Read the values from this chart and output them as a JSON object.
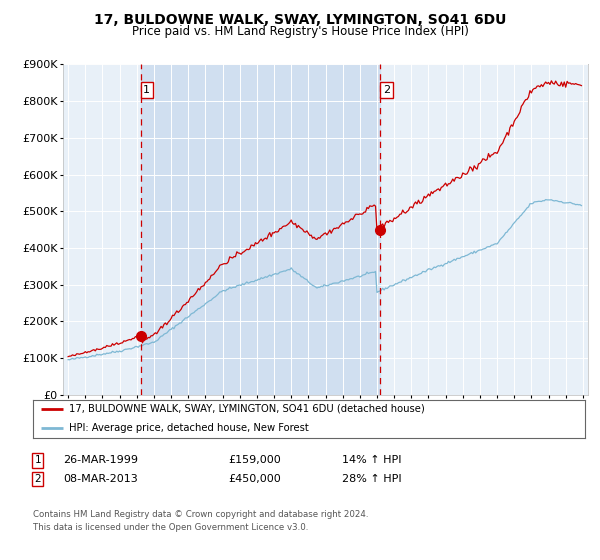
{
  "title": "17, BULDOWNE WALK, SWAY, LYMINGTON, SO41 6DU",
  "subtitle": "Price paid vs. HM Land Registry's House Price Index (HPI)",
  "red_color": "#cc0000",
  "blue_color": "#7eb8d4",
  "purchase1_date": "26-MAR-1999",
  "purchase1_price": 159000,
  "purchase1_hpi": "14%",
  "purchase2_date": "08-MAR-2013",
  "purchase2_price": 450000,
  "purchase2_hpi": "28%",
  "legend1": "17, BULDOWNE WALK, SWAY, LYMINGTON, SO41 6DU (detached house)",
  "legend2": "HPI: Average price, detached house, New Forest",
  "footnote": "Contains HM Land Registry data © Crown copyright and database right 2024.\nThis data is licensed under the Open Government Licence v3.0.",
  "ylim": [
    0,
    900000
  ],
  "yticks": [
    0,
    100000,
    200000,
    300000,
    400000,
    500000,
    600000,
    700000,
    800000,
    900000
  ],
  "ytick_labels": [
    "£0",
    "£100K",
    "£200K",
    "£300K",
    "£400K",
    "£500K",
    "£600K",
    "£700K",
    "£800K",
    "£900K"
  ],
  "marker1_year": 1999.23,
  "marker2_year": 2013.18,
  "vline1_year": 1999.23,
  "vline2_year": 2013.18,
  "plot_bg": "#e8f0f8",
  "span_color": "#d0dff0"
}
